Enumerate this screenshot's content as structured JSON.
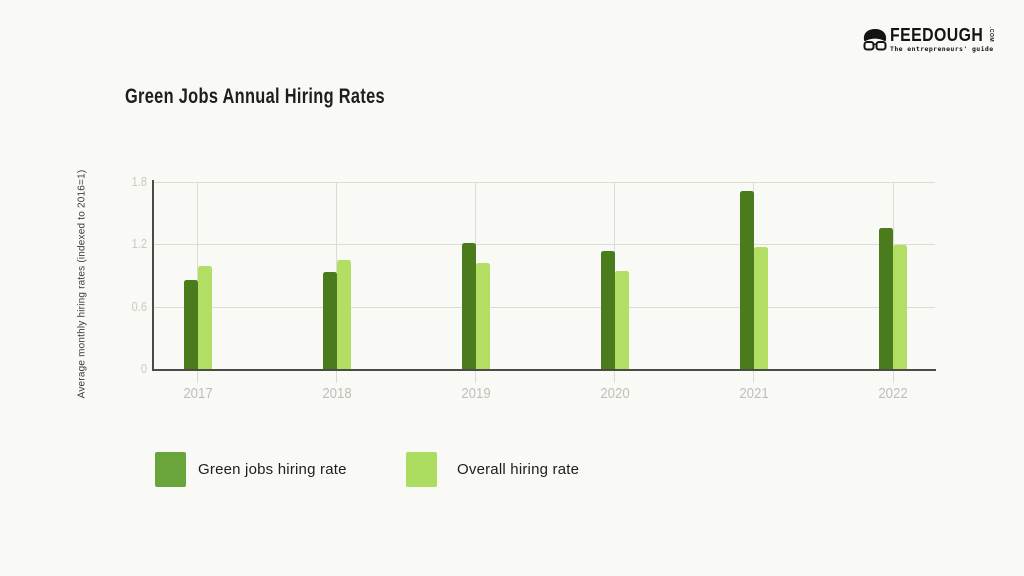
{
  "logo": {
    "brand": "FEEDOUGH",
    "suffix": ".COM",
    "tagline": "The entrepreneurs' guide"
  },
  "chart_data": {
    "type": "bar",
    "title": "Green Jobs Annual Hiring Rates",
    "ylabel": "Average monthly hiring rates (indexed to 2016=1)",
    "xlabel": "",
    "categories": [
      "2017",
      "2018",
      "2019",
      "2020",
      "2021",
      "2022"
    ],
    "series": [
      {
        "name": "Green jobs hiring rate",
        "color": "#4a7c1d",
        "legend_color": "#6aa53c",
        "values": [
          0.86,
          0.93,
          1.21,
          1.14,
          1.71,
          1.36
        ]
      },
      {
        "name": "Overall hiring rate",
        "color": "#b2df63",
        "legend_color": "#acdd61",
        "values": [
          0.99,
          1.05,
          1.02,
          0.94,
          1.17,
          1.19
        ]
      }
    ],
    "yticks": [
      0,
      0.6,
      1.2,
      1.8
    ],
    "ylim": [
      0,
      1.8
    ],
    "grid": true,
    "legend_position": "bottom"
  }
}
